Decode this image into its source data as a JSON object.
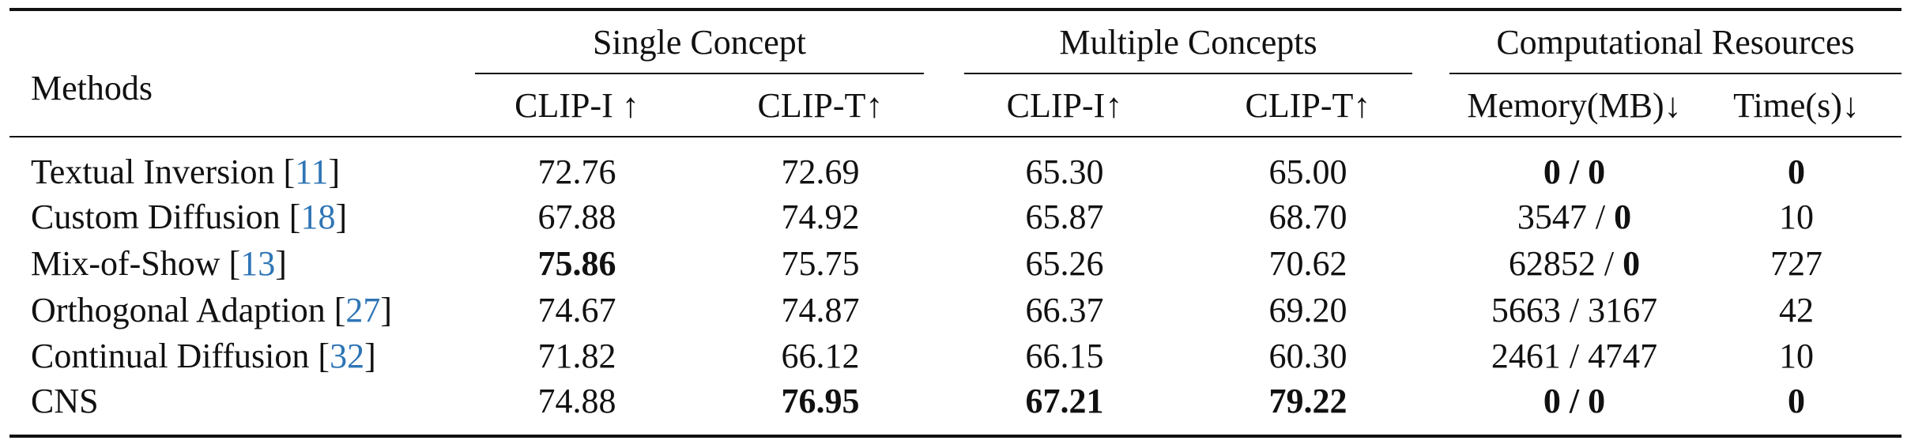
{
  "table": {
    "methods_header": "Methods",
    "groups": [
      "Single Concept",
      "Multiple Concepts",
      "Computational Resources"
    ],
    "columns": [
      "CLIP-I ↑",
      "CLIP-T↑",
      "CLIP-I↑",
      "CLIP-T↑",
      "Memory(MB)↓",
      "Time(s)↓"
    ],
    "rows": [
      [
        [
          {
            "text": "Textual Inversion ["
          },
          {
            "text": "11",
            "style": "link"
          },
          {
            "text": "]"
          }
        ],
        [
          {
            "text": "72.76"
          }
        ],
        [
          {
            "text": "72.69"
          }
        ],
        [
          {
            "text": "65.30"
          }
        ],
        [
          {
            "text": "65.00"
          }
        ],
        [
          {
            "text": "0 / 0",
            "style": "bold"
          }
        ],
        [
          {
            "text": "0",
            "style": "bold"
          }
        ]
      ],
      [
        [
          {
            "text": "Custom Diffusion ["
          },
          {
            "text": "18",
            "style": "link"
          },
          {
            "text": "]"
          }
        ],
        [
          {
            "text": "67.88"
          }
        ],
        [
          {
            "text": "74.92"
          }
        ],
        [
          {
            "text": "65.87"
          }
        ],
        [
          {
            "text": "68.70"
          }
        ],
        [
          {
            "text": "3547 / "
          },
          {
            "text": "0",
            "style": "bold"
          }
        ],
        [
          {
            "text": "10"
          }
        ]
      ],
      [
        [
          {
            "text": "Mix-of-Show ["
          },
          {
            "text": "13",
            "style": "link"
          },
          {
            "text": "]"
          }
        ],
        [
          {
            "text": "75.86",
            "style": "bold"
          }
        ],
        [
          {
            "text": "75.75"
          }
        ],
        [
          {
            "text": "65.26"
          }
        ],
        [
          {
            "text": "70.62"
          }
        ],
        [
          {
            "text": "62852 / "
          },
          {
            "text": "0",
            "style": "bold"
          }
        ],
        [
          {
            "text": "727"
          }
        ]
      ],
      [
        [
          {
            "text": "Orthogonal Adaption ["
          },
          {
            "text": "27",
            "style": "link"
          },
          {
            "text": "]"
          }
        ],
        [
          {
            "text": "74.67"
          }
        ],
        [
          {
            "text": "74.87"
          }
        ],
        [
          {
            "text": "66.37"
          }
        ],
        [
          {
            "text": "69.20"
          }
        ],
        [
          {
            "text": "5663 / 3167"
          }
        ],
        [
          {
            "text": "42"
          }
        ]
      ],
      [
        [
          {
            "text": "Continual Diffusion ["
          },
          {
            "text": "32",
            "style": "link"
          },
          {
            "text": "]"
          }
        ],
        [
          {
            "text": "71.82"
          }
        ],
        [
          {
            "text": "66.12"
          }
        ],
        [
          {
            "text": "66.15"
          }
        ],
        [
          {
            "text": "60.30"
          }
        ],
        [
          {
            "text": "2461 / 4747"
          }
        ],
        [
          {
            "text": "10"
          }
        ]
      ],
      [
        [
          {
            "text": "CNS"
          }
        ],
        [
          {
            "text": "74.88"
          }
        ],
        [
          {
            "text": "76.95",
            "style": "bold"
          }
        ],
        [
          {
            "text": "67.21",
            "style": "bold"
          }
        ],
        [
          {
            "text": "79.22",
            "style": "bold"
          }
        ],
        [
          {
            "text": "0 / 0",
            "style": "bold"
          }
        ],
        [
          {
            "text": "0",
            "style": "bold"
          }
        ]
      ]
    ]
  }
}
